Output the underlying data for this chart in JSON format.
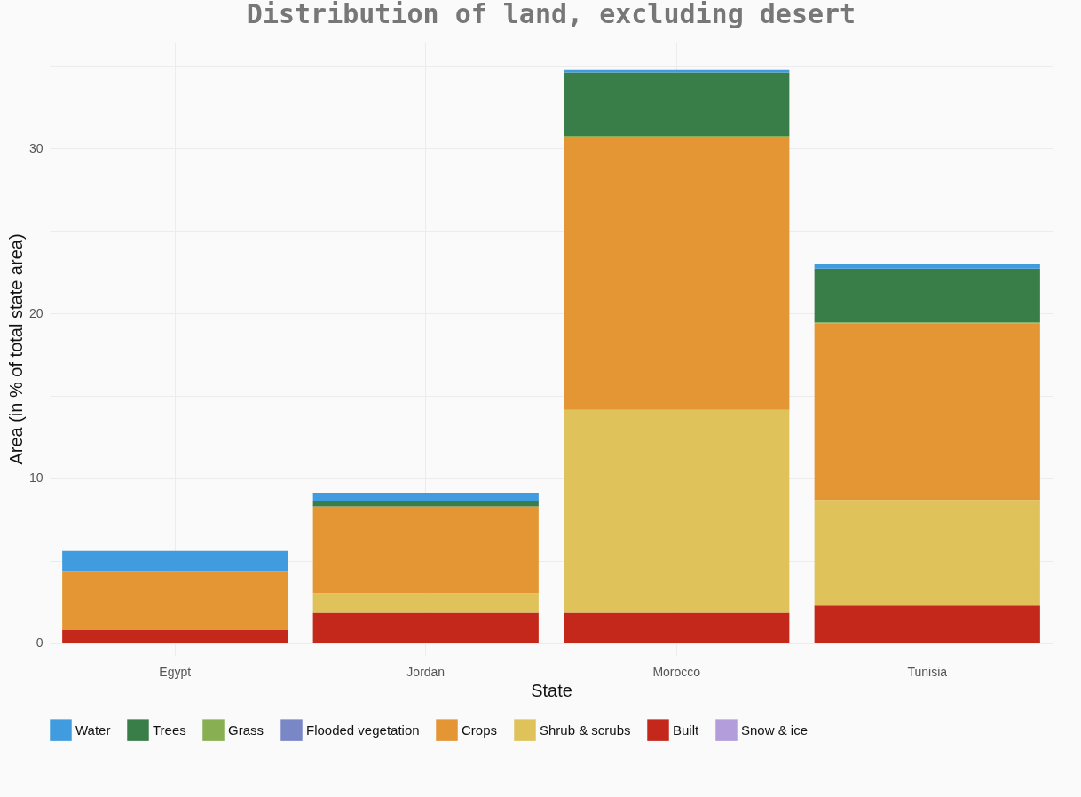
{
  "chart_data": {
    "type": "bar",
    "title": "Distribution of land, excluding desert",
    "xlabel": "State",
    "ylabel": "Area (in % of total state area)",
    "categories": [
      "Egypt",
      "Jordan",
      "Morocco",
      "Tunisia"
    ],
    "stacked": true,
    "series": [
      {
        "name": "Snow & ice",
        "color": "#b39ddb",
        "values": [
          0,
          0,
          0,
          0
        ]
      },
      {
        "name": "Built",
        "color": "#c4281b",
        "values": [
          0.8,
          1.85,
          1.85,
          2.3
        ]
      },
      {
        "name": "Shrub & scrubs",
        "color": "#dfc35a",
        "values": [
          0,
          1.2,
          12.3,
          6.4
        ]
      },
      {
        "name": "Crops",
        "color": "#e49635",
        "values": [
          3.6,
          5.25,
          16.55,
          10.7
        ]
      },
      {
        "name": "Flooded vegetation",
        "color": "#7a87c6",
        "values": [
          0,
          0,
          0,
          0
        ]
      },
      {
        "name": "Grass",
        "color": "#88b053",
        "values": [
          0,
          0,
          0.05,
          0.05
        ]
      },
      {
        "name": "Trees",
        "color": "#397d49",
        "values": [
          0,
          0.3,
          3.85,
          3.25
        ]
      },
      {
        "name": "Water",
        "color": "#419bdf",
        "values": [
          1.2,
          0.5,
          0.15,
          0.3
        ]
      }
    ],
    "ylim": [
      -0.7,
      36.4
    ],
    "yticks": [
      0,
      {
        "value": 5,
        "label": null
      },
      10,
      {
        "value": 15,
        "label": null
      },
      20,
      {
        "value": 25,
        "label": null
      },
      30,
      {
        "value": 35,
        "label": null
      }
    ],
    "grid": true,
    "legend": "bottom"
  }
}
